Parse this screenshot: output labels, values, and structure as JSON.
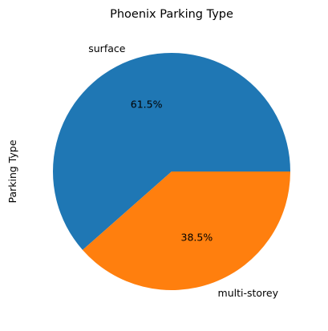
{
  "chart_data": {
    "type": "pie",
    "title": "Phoenix Parking Type",
    "ylabel": "Parking Type",
    "slices": [
      {
        "label": "surface",
        "value": 61.5,
        "pct_label": "61.5%",
        "color": "#1f77b4"
      },
      {
        "label": "multi-storey",
        "value": 38.5,
        "pct_label": "38.5%",
        "color": "#ff7f0e"
      }
    ]
  }
}
